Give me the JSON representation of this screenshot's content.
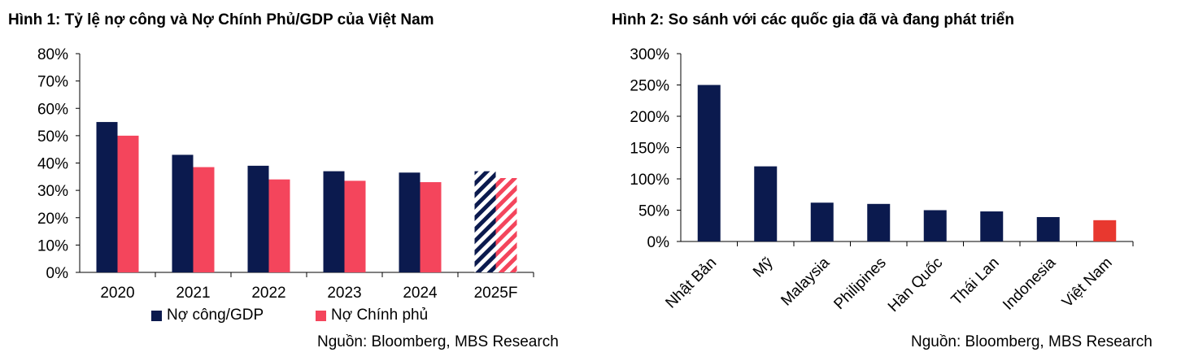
{
  "chart_data": [
    {
      "type": "bar",
      "title": "Hình 1: Tỷ lệ nợ công và Nợ Chính Phủ/GDP của Việt Nam",
      "categories": [
        "2020",
        "2021",
        "2022",
        "2023",
        "2024",
        "2025F"
      ],
      "series": [
        {
          "name": "Nợ công/GDP",
          "color": "#0b1a4e",
          "values": [
            55,
            43,
            39,
            37,
            36.5,
            37
          ]
        },
        {
          "name": "Nợ Chính phủ",
          "color": "#f4455c",
          "values": [
            50,
            38.5,
            34,
            33.5,
            33,
            34.5
          ]
        }
      ],
      "forecast_category": "2025F",
      "yticks": [
        "0%",
        "10%",
        "20%",
        "30%",
        "40%",
        "50%",
        "60%",
        "70%",
        "80%"
      ],
      "ylim": [
        0,
        80
      ],
      "xlabel": "",
      "ylabel": "",
      "source": "Nguồn: Bloomberg, MBS Research"
    },
    {
      "type": "bar",
      "title": "Hình 2: So sánh với các quốc gia đã và đang phát triển",
      "categories": [
        "Nhật Bản",
        "Mỹ",
        "Malaysia",
        "Philipines",
        "Hàn Quốc",
        "Thái Lan",
        "Indonesia",
        "Việt Nam"
      ],
      "values": [
        250,
        120,
        62,
        60,
        50,
        48,
        39,
        34
      ],
      "colors": [
        "#0b1a4e",
        "#0b1a4e",
        "#0b1a4e",
        "#0b1a4e",
        "#0b1a4e",
        "#0b1a4e",
        "#0b1a4e",
        "#e8382f"
      ],
      "yticks": [
        "0%",
        "50%",
        "100%",
        "150%",
        "200%",
        "250%",
        "300%"
      ],
      "ylim": [
        0,
        300
      ],
      "xlabel": "",
      "ylabel": "",
      "source": "Nguồn: Bloomberg, MBS Research"
    }
  ]
}
